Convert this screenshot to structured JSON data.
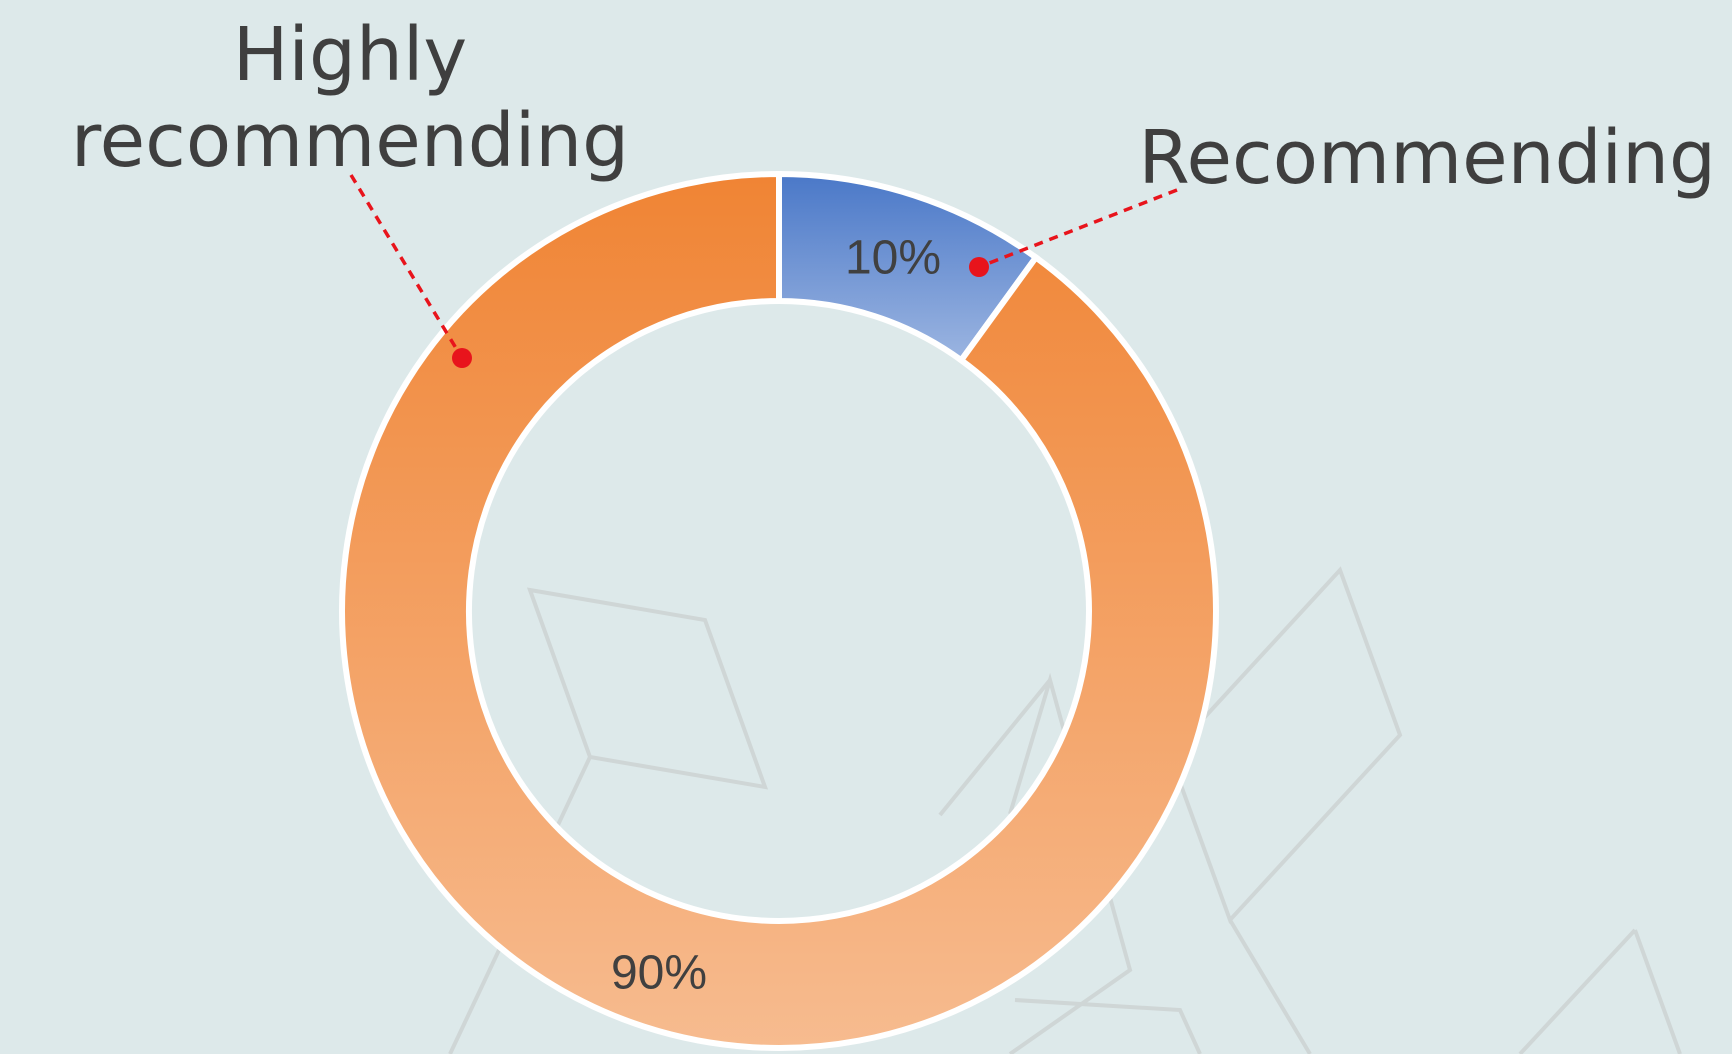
{
  "chart_data": {
    "type": "donut",
    "categories": [
      "Recommending",
      "Highly recommending"
    ],
    "values": [
      10,
      90
    ],
    "value_labels": [
      "10%",
      "90%"
    ],
    "colors": [
      "#4a78c8",
      "#f08434"
    ]
  }
}
